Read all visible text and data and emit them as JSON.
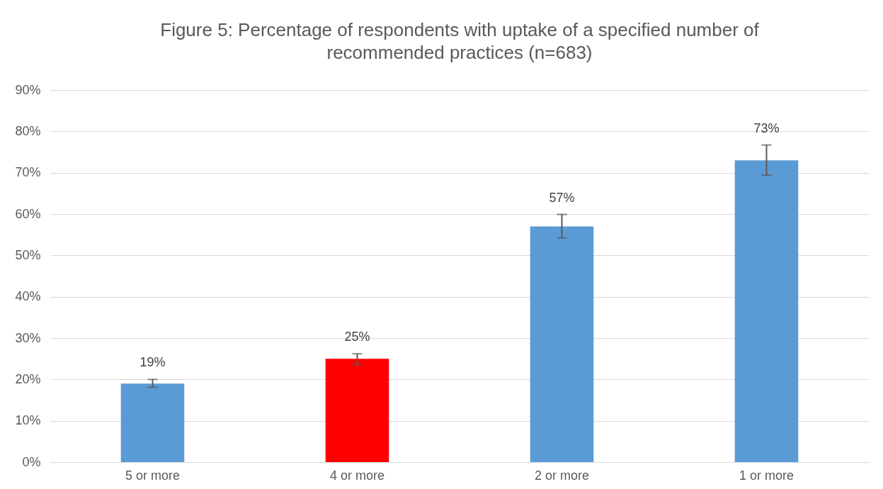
{
  "chart_data": {
    "type": "bar",
    "title": "Figure 5: Percentage of respondents with uptake of a specified number of recommended practices (n=683)",
    "categories": [
      "5 or more",
      "4 or more",
      "2 or more",
      "1 or more"
    ],
    "values": [
      19,
      25,
      57,
      73
    ],
    "colors": [
      "#5b9bd5",
      "#ff0000",
      "#5b9bd5",
      "#5b9bd5"
    ],
    "errors": [
      [
        18.1,
        20.0
      ],
      [
        23.6,
        26.2
      ],
      [
        54.2,
        59.9
      ],
      [
        69.4,
        76.7
      ]
    ],
    "value_labels": [
      "19%",
      "25%",
      "57%",
      "73%"
    ],
    "ylim": [
      0,
      90
    ],
    "yticks": [
      {
        "value": 0,
        "label": "0%"
      },
      {
        "value": 10,
        "label": "10%"
      },
      {
        "value": 20,
        "label": "20%"
      },
      {
        "value": 30,
        "label": "30%"
      },
      {
        "value": 40,
        "label": "40%"
      },
      {
        "value": 50,
        "label": "50%"
      },
      {
        "value": 60,
        "label": "60%"
      },
      {
        "value": 70,
        "label": "70%"
      },
      {
        "value": 80,
        "label": "80%"
      },
      {
        "value": 90,
        "label": "90%"
      }
    ],
    "grid": "y"
  }
}
